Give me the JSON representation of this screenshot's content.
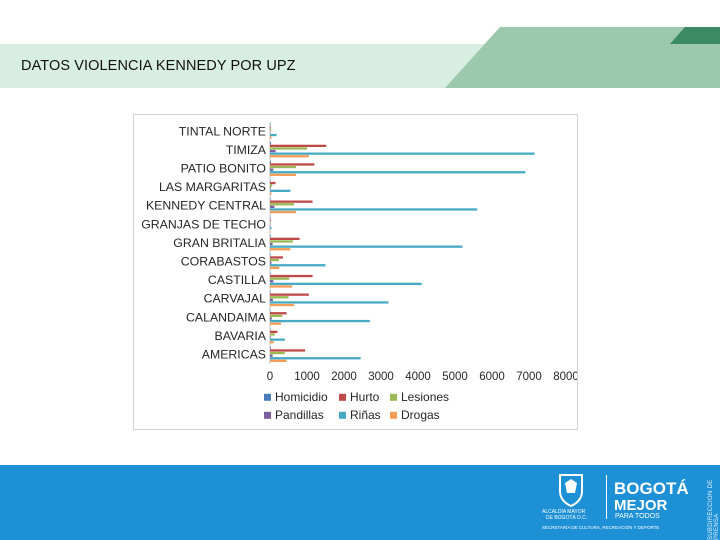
{
  "slide": {
    "title": "DATOS VIOLENCIA KENNEDY POR UPZ"
  },
  "footer": {
    "side_text": "SUBDIRECCIÓN DE PRENSA",
    "alcaldia_line1": "ALCALDÍA MAYOR",
    "alcaldia_line2": "DE BOGOTÁ D.C.",
    "bogota_line1": "BOGOTÁ",
    "bogota_line2": "MEJOR",
    "bogota_line3": "PARA TODOS",
    "secretaria": "SECRETARÍA DE CULTURA, RECREACIÓN Y DEPORTE"
  },
  "colors": {
    "banner": "#d9eee3",
    "stripe": "#9cc8ae",
    "footer": "#1e91d6",
    "Homicidio": "#4a7ebb",
    "Hurto": "#be4b48",
    "Lesiones": "#98b954",
    "Pandillas": "#7d5fa0",
    "Riñas": "#46aac5",
    "Drogas": "#f59d56"
  },
  "chart_data": {
    "type": "bar",
    "orientation": "horizontal",
    "title": "",
    "categories": [
      "TINTAL NORTE",
      "TIMIZA",
      "PATIO BONITO",
      "LAS MARGARITAS",
      "KENNEDY CENTRAL",
      "GRANJAS DE TECHO",
      "GRAN BRITALIA",
      "CORABASTOS",
      "CASTILLA",
      "CARVAJAL",
      "CALANDAIMA",
      "BAVARIA",
      "AMERICAS"
    ],
    "series": [
      {
        "name": "Homicidio",
        "values": [
          5,
          30,
          25,
          5,
          15,
          5,
          20,
          15,
          10,
          15,
          10,
          5,
          20
        ]
      },
      {
        "name": "Hurto",
        "values": [
          20,
          1520,
          1200,
          150,
          1150,
          20,
          800,
          350,
          1150,
          1050,
          450,
          200,
          950
        ]
      },
      {
        "name": "Lesiones",
        "values": [
          30,
          1000,
          700,
          60,
          650,
          15,
          620,
          240,
          520,
          500,
          330,
          130,
          400
        ]
      },
      {
        "name": "Pandillas",
        "values": [
          5,
          150,
          90,
          20,
          120,
          5,
          70,
          40,
          90,
          80,
          50,
          20,
          70
        ]
      },
      {
        "name": "Riñas",
        "values": [
          180,
          7150,
          6900,
          550,
          5600,
          40,
          5200,
          1500,
          4100,
          3200,
          2700,
          400,
          2450
        ]
      },
      {
        "name": "Drogas",
        "values": [
          40,
          1050,
          700,
          40,
          700,
          15,
          550,
          250,
          600,
          650,
          300,
          100,
          450
        ]
      }
    ],
    "xlim": [
      0,
      8000
    ],
    "xticks": [
      "0",
      "1000",
      "2000",
      "3000",
      "4000",
      "5000",
      "6000",
      "7000",
      "8000"
    ],
    "legend": [
      "Homicidio",
      "Hurto",
      "Lesiones",
      "Pandillas",
      "Riñas",
      "Drogas"
    ],
    "legend_position": "bottom",
    "grid": false
  }
}
